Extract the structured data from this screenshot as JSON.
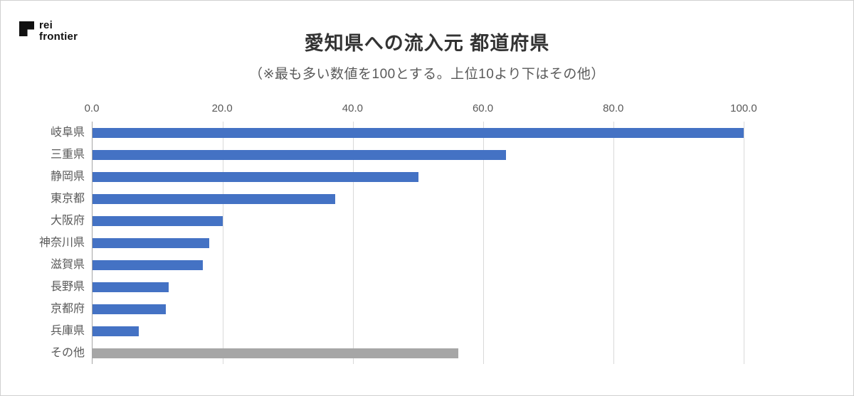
{
  "logo": {
    "line1": "rei",
    "line2": "frontier"
  },
  "header": {
    "title": "愛知県への流入元 都道府県",
    "subtitle": "（※最も多い数値を100とする。上位10より下はその他）"
  },
  "chart_data": {
    "type": "bar",
    "orientation": "horizontal",
    "title": "愛知県への流入元 都道府県",
    "subtitle": "（※最も多い数値を100とする。上位10より下はその他）",
    "categories": [
      "岐阜県",
      "三重県",
      "静岡県",
      "東京都",
      "大阪府",
      "神奈川県",
      "滋賀県",
      "長野県",
      "京都府",
      "兵庫県",
      "その他"
    ],
    "values": [
      100.0,
      63.5,
      50.0,
      37.3,
      20.0,
      17.9,
      16.9,
      11.7,
      11.3,
      7.1,
      56.2
    ],
    "colors": [
      "#4472C4",
      "#4472C4",
      "#4472C4",
      "#4472C4",
      "#4472C4",
      "#4472C4",
      "#4472C4",
      "#4472C4",
      "#4472C4",
      "#4472C4",
      "#A6A6A6"
    ],
    "x_tick_values": [
      0,
      20,
      40,
      60,
      80,
      100
    ],
    "x_tick_labels": [
      "0.0",
      "20.0",
      "40.0",
      "60.0",
      "80.0",
      "100.0"
    ],
    "xlim": [
      0,
      113
    ],
    "grid": "vertical-gridlines-on",
    "legend": "none",
    "style": {
      "bar_blue": "#4472C4",
      "bar_gray": "#A6A6A6",
      "gridline_color": "#D9D9D9",
      "axis_line_color": "#A6A6A6",
      "label_color": "#595959"
    }
  }
}
